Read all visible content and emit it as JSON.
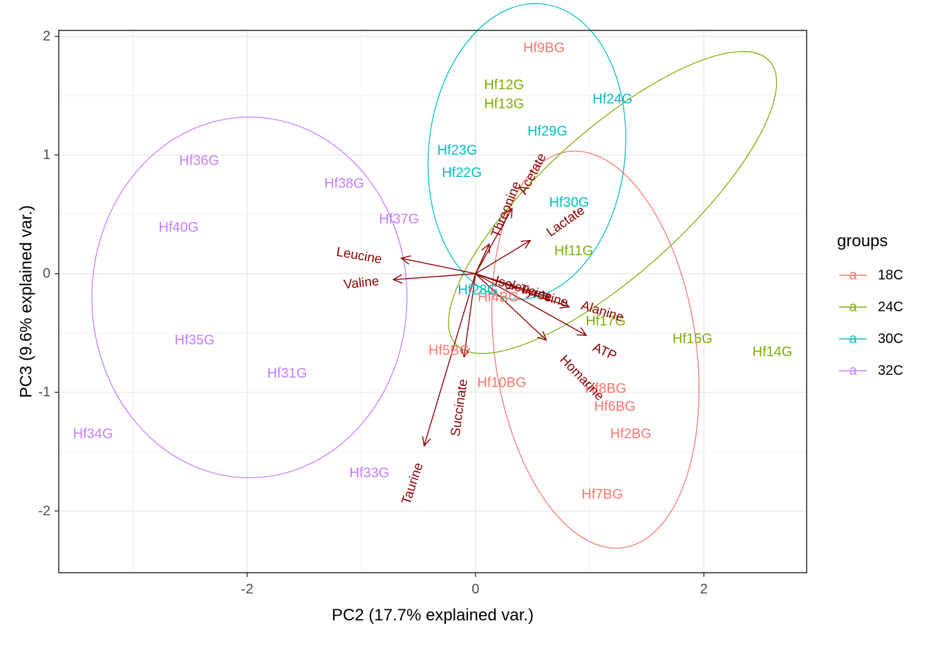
{
  "chart_data": {
    "type": "scatter",
    "subtype": "pca-biplot",
    "xlabel": "PC2 (17.7% explained var.)",
    "ylabel": "PC3 (9.6% explained var.)",
    "xlim": [
      -3.65,
      2.9
    ],
    "ylim": [
      -2.52,
      2.05
    ],
    "xticks": [
      -2,
      0,
      2
    ],
    "yticks": [
      -2,
      -1,
      0,
      1,
      2
    ],
    "grid": true,
    "legend": {
      "title": "groups",
      "position": "right",
      "key_glyph": "a",
      "entries": [
        {
          "name": "18C",
          "color": "#F8766D"
        },
        {
          "name": "24C",
          "color": "#7CAE00"
        },
        {
          "name": "30C",
          "color": "#00BFC4"
        },
        {
          "name": "32C",
          "color": "#C77CFF"
        }
      ]
    },
    "points": [
      {
        "label": "Hf9BG",
        "group": "18C",
        "x": 0.6,
        "y": 1.9
      },
      {
        "label": "Hf4BG",
        "group": "18C",
        "x": 0.2,
        "y": -0.2
      },
      {
        "label": "Hf5BG",
        "group": "18C",
        "x": -0.23,
        "y": -0.65
      },
      {
        "label": "Hf10BG",
        "group": "18C",
        "x": 0.23,
        "y": -0.92
      },
      {
        "label": "Hf8BG",
        "group": "18C",
        "x": 1.14,
        "y": -0.97
      },
      {
        "label": "Hf6BG",
        "group": "18C",
        "x": 1.22,
        "y": -1.12
      },
      {
        "label": "Hf2BG",
        "group": "18C",
        "x": 1.36,
        "y": -1.35
      },
      {
        "label": "Hf7BG",
        "group": "18C",
        "x": 1.11,
        "y": -1.86
      },
      {
        "label": "Hf12G",
        "group": "24C",
        "x": 0.25,
        "y": 1.59
      },
      {
        "label": "Hf13G",
        "group": "24C",
        "x": 0.25,
        "y": 1.43
      },
      {
        "label": "Hf11G",
        "group": "24C",
        "x": 0.86,
        "y": 0.19
      },
      {
        "label": "Hf17G",
        "group": "24C",
        "x": 1.14,
        "y": -0.4
      },
      {
        "label": "Hf15G",
        "group": "24C",
        "x": 1.9,
        "y": -0.55
      },
      {
        "label": "Hf14G",
        "group": "24C",
        "x": 2.6,
        "y": -0.66
      },
      {
        "label": "Hf24G",
        "group": "30C",
        "x": 1.2,
        "y": 1.47
      },
      {
        "label": "Hf29G",
        "group": "30C",
        "x": 0.63,
        "y": 1.2
      },
      {
        "label": "Hf23G",
        "group": "30C",
        "x": -0.16,
        "y": 1.04
      },
      {
        "label": "Hf22G",
        "group": "30C",
        "x": -0.12,
        "y": 0.85
      },
      {
        "label": "Hf30G",
        "group": "30C",
        "x": 0.82,
        "y": 0.6
      },
      {
        "label": "Hf28G",
        "group": "30C",
        "x": 0.02,
        "y": -0.14
      },
      {
        "label": "Hf36G",
        "group": "32C",
        "x": -2.42,
        "y": 0.95
      },
      {
        "label": "Hf38G",
        "group": "32C",
        "x": -1.15,
        "y": 0.76
      },
      {
        "label": "Hf37G",
        "group": "32C",
        "x": -0.67,
        "y": 0.46
      },
      {
        "label": "Hf40G",
        "group": "32C",
        "x": -2.6,
        "y": 0.39
      },
      {
        "label": "Hf35G",
        "group": "32C",
        "x": -2.46,
        "y": -0.56
      },
      {
        "label": "Hf31G",
        "group": "32C",
        "x": -1.65,
        "y": -0.84
      },
      {
        "label": "Hf34G",
        "group": "32C",
        "x": -3.35,
        "y": -1.35
      },
      {
        "label": "Hf33G",
        "group": "32C",
        "x": -0.93,
        "y": -1.68
      }
    ],
    "ellipses": [
      {
        "group": "18C",
        "cx": 1.05,
        "cy": -0.64,
        "rx": 1.75,
        "ry": 0.85,
        "angle_deg": -98
      },
      {
        "group": "24C",
        "cx": 1.2,
        "cy": 0.6,
        "rx": 1.85,
        "ry": 0.6,
        "angle_deg": -42
      },
      {
        "group": "30C",
        "cx": 0.45,
        "cy": 1.03,
        "rx": 0.86,
        "ry": 1.25,
        "angle_deg": 6
      },
      {
        "group": "32C",
        "cx": -1.98,
        "cy": -0.2,
        "rx": 1.38,
        "ry": 1.52,
        "angle_deg": 0
      }
    ],
    "loadings": [
      {
        "name": "Leucine",
        "x": -0.65,
        "y": 0.13,
        "lx": -1.02,
        "ly": 0.15,
        "rot": 10
      },
      {
        "name": "Valine",
        "x": -0.72,
        "y": -0.05,
        "lx": -1.0,
        "ly": -0.08,
        "rot": -6
      },
      {
        "name": "Threonine",
        "x": 0.12,
        "y": 0.25,
        "lx": 0.27,
        "ly": 0.54,
        "rot": -68
      },
      {
        "name": "Acetate",
        "x": 0.32,
        "y": 0.55,
        "lx": 0.5,
        "ly": 0.84,
        "rot": -62
      },
      {
        "name": "Lactate",
        "x": 0.48,
        "y": 0.28,
        "lx": 0.79,
        "ly": 0.44,
        "rot": -35
      },
      {
        "name": "Isoleucine",
        "x": 0.35,
        "y": -0.12,
        "lx": 0.42,
        "ly": -0.13,
        "rot": 17
      },
      {
        "name": "Tyrosine",
        "x": 0.65,
        "y": -0.2,
        "lx": 0.6,
        "ly": -0.19,
        "rot": 17
      },
      {
        "name": "Alanine",
        "x": 0.82,
        "y": -0.28,
        "lx": 1.11,
        "ly": -0.32,
        "rot": 17
      },
      {
        "name": "ATP",
        "x": 0.97,
        "y": -0.52,
        "lx": 1.13,
        "ly": -0.66,
        "rot": 25
      },
      {
        "name": "Homarine",
        "x": 0.62,
        "y": -0.56,
        "lx": 0.93,
        "ly": -0.88,
        "rot": 46
      },
      {
        "name": "Succinate",
        "x": -0.1,
        "y": -0.7,
        "lx": -0.14,
        "ly": -1.13,
        "rot": -82
      },
      {
        "name": "Taurine",
        "x": -0.45,
        "y": -1.45,
        "lx": -0.55,
        "ly": -1.77,
        "rot": -72
      }
    ]
  }
}
